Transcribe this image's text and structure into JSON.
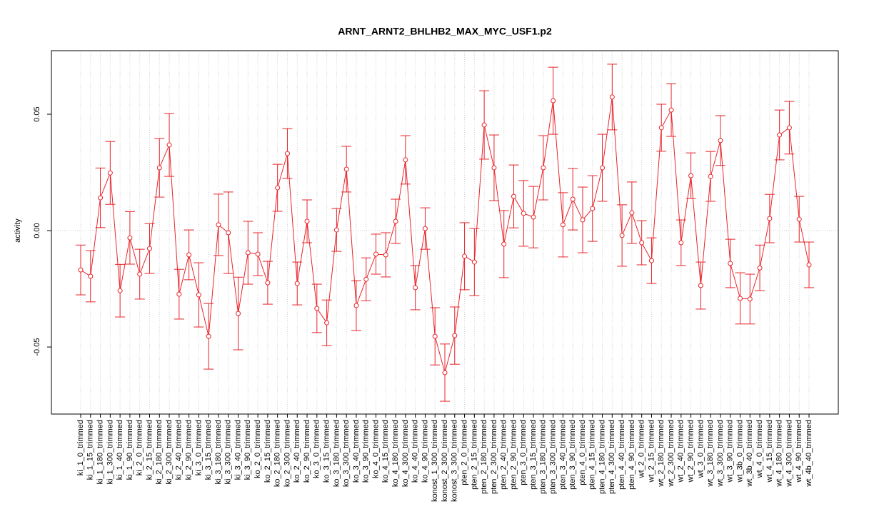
{
  "chart_data": {
    "type": "line",
    "title": "ARNT_ARNT2_BHLHB2_MAX_MYC_USF1.p2",
    "y_label": "activity",
    "categories": [
      "ki_1_0_trimmed",
      "ki_1_15_trimmed",
      "ki_1_180_trimmed",
      "ki_1_300_trimmed",
      "ki_1_40_trimmed",
      "ki_1_90_trimmed",
      "ki_2_0_trimmed",
      "ki_2_15_trimmed",
      "ki_2_180_trimmed",
      "ki_2_300_trimmed",
      "ki_2_40_trimmed",
      "ki_2_90_trimmed",
      "ki_3_0_trimmed",
      "ki_3_15_trimmed",
      "ki_3_180_trimmed",
      "ki_3_300_trimmed",
      "ki_3_40_trimmed",
      "ki_3_90_trimmed",
      "ko_2_0_trimmed",
      "ko_2_15_trimmed",
      "ko_2_180_trimmed",
      "ko_2_300_trimmed",
      "ko_2_40_trimmed",
      "ko_2_90_trimmed",
      "ko_3_0_trimmed",
      "ko_3_15_trimmed",
      "ko_3_180_trimmed",
      "ko_3_300_trimmed",
      "ko_3_40_trimmed",
      "ko_3_90_trimmed",
      "ko_4_0_trimmed",
      "ko_4_15_trimmed",
      "ko_4_180_trimmed",
      "ko_4_300_trimmed",
      "ko_4_40_trimmed",
      "ko_4_90_trimmed",
      "konost_1_300_trimmed",
      "konost_2_300_trimmed",
      "konost_3_300_trimmed",
      "pten_2_0_trimmed",
      "pten_2_15_trimmed",
      "pten_2_180_trimmed",
      "pten_2_300_trimmed",
      "pten_2_40_trimmed",
      "pten_2_90_trimmed",
      "pten_3_0_trimmed",
      "pten_3_15_trimmed",
      "pten_3_180_trimmed",
      "pten_3_300_trimmed",
      "pten_3_40_trimmed",
      "pten_3_90_trimmed",
      "pten_4_0_trimmed",
      "pten_4_15_trimmed",
      "pten_4_180_trimmed",
      "pten_4_300_trimmed",
      "pten_4_40_trimmed",
      "pten_4_90_trimmed",
      "wt_2_0_trimmed",
      "wt_2_15_trimmed",
      "wt_2_180_trimmed",
      "wt_2_300_trimmed",
      "wt_2_40_trimmed",
      "wt_2_90_trimmed",
      "wt_3_0_trimmed",
      "wt_3_180_trimmed",
      "wt_3_300_trimmed",
      "wt_3_90_trimmed",
      "wt_3b_0_trimmed",
      "wt_3b_40_trimmed",
      "wt_4_0_trimmed",
      "wt_4_15_trimmed",
      "wt_4_180_trimmed",
      "wt_4_300_trimmed",
      "wt_4_90_trimmed",
      "wt_4b_40_trimmed"
    ],
    "series": [
      {
        "color": "#e8242a",
        "values": [
          -0.0169,
          -0.0196,
          0.0141,
          0.0248,
          -0.0258,
          -0.0031,
          -0.0187,
          -0.0077,
          0.027,
          0.0368,
          -0.0273,
          -0.0104,
          -0.0276,
          -0.0454,
          0.0025,
          -0.0009,
          -0.0356,
          -0.0095,
          -0.0101,
          -0.0224,
          0.0184,
          0.0331,
          -0.0227,
          0.004,
          -0.0334,
          -0.0396,
          0.0003,
          0.0264,
          -0.0322,
          -0.0209,
          -0.0101,
          -0.0104,
          0.004,
          0.0304,
          -0.0245,
          0.0009,
          -0.0454,
          -0.061,
          -0.0451,
          -0.011,
          -0.0135,
          0.0454,
          0.027,
          -0.0058,
          0.0147,
          0.0074,
          0.0058,
          0.027,
          0.0558,
          0.0025,
          0.0135,
          0.0046,
          0.0095,
          0.027,
          0.0574,
          -0.0021,
          0.0077,
          -0.0052,
          -0.0129,
          0.0442,
          0.0518,
          -0.0052,
          0.0236,
          -0.0236,
          0.0233,
          0.0387,
          -0.0141,
          -0.0291,
          -0.0294,
          -0.016,
          0.0052,
          0.0411,
          0.0442,
          0.0049,
          -0.0147
        ],
        "errors": [
          0.0107,
          0.011,
          0.0128,
          0.0135,
          0.0113,
          0.0113,
          0.0107,
          0.0107,
          0.0126,
          0.0135,
          0.0107,
          0.0107,
          0.0138,
          0.0141,
          0.0132,
          0.0175,
          0.0156,
          0.0135,
          0.0092,
          0.0092,
          0.0101,
          0.0107,
          0.0092,
          0.0092,
          0.0104,
          0.0098,
          0.0092,
          0.0098,
          0.0107,
          0.0092,
          0.0086,
          0.0095,
          0.0095,
          0.0104,
          0.0095,
          0.0089,
          0.0123,
          0.0123,
          0.0123,
          0.0144,
          0.0144,
          0.0147,
          0.0141,
          0.0144,
          0.0135,
          0.0141,
          0.0132,
          0.0138,
          0.0144,
          0.0138,
          0.0132,
          0.0141,
          0.0141,
          0.0144,
          0.0141,
          0.0132,
          0.0132,
          0.0095,
          0.0098,
          0.0101,
          0.0113,
          0.0098,
          0.0098,
          0.0101,
          0.0107,
          0.0107,
          0.0104,
          0.011,
          0.0107,
          0.0098,
          0.0104,
          0.0107,
          0.0113,
          0.0098,
          0.0098
        ]
      }
    ],
    "ylim": [
      -0.0788,
      0.0773
    ],
    "yticks": [
      {
        "value": -0.05,
        "label": "-0.05"
      },
      {
        "value": 0,
        "label": "0.00"
      },
      {
        "value": 0.05,
        "label": "0.05"
      }
    ],
    "reference_line": 0,
    "grid": true
  }
}
